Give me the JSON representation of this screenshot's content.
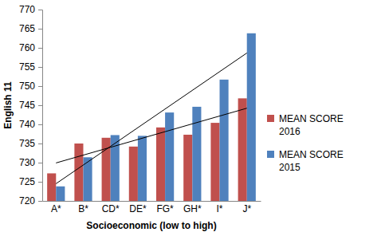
{
  "chart_data": {
    "type": "bar",
    "x_label": "Socioeconomic (low to high)",
    "y_label": "English 11",
    "categories": [
      "A*",
      "B*",
      "CD*",
      "DE*",
      "FG*",
      "GH*",
      "I*",
      "J*"
    ],
    "series": [
      {
        "name": "MEAN SCORE 2016",
        "color": "#c0504d",
        "values": [
          727.2,
          735,
          736.5,
          734.2,
          739.2,
          737.3,
          740.4,
          746.8
        ]
      },
      {
        "name": "MEAN SCORE 2015",
        "color": "#4f81bd",
        "values": [
          723.8,
          731.4,
          737.2,
          737,
          743.1,
          744.6,
          751.7,
          763.8
        ]
      }
    ],
    "ylim": [
      720,
      770
    ],
    "yticks": [
      720,
      725,
      730,
      735,
      740,
      745,
      750,
      755,
      760,
      765,
      770
    ],
    "legend": "right"
  }
}
